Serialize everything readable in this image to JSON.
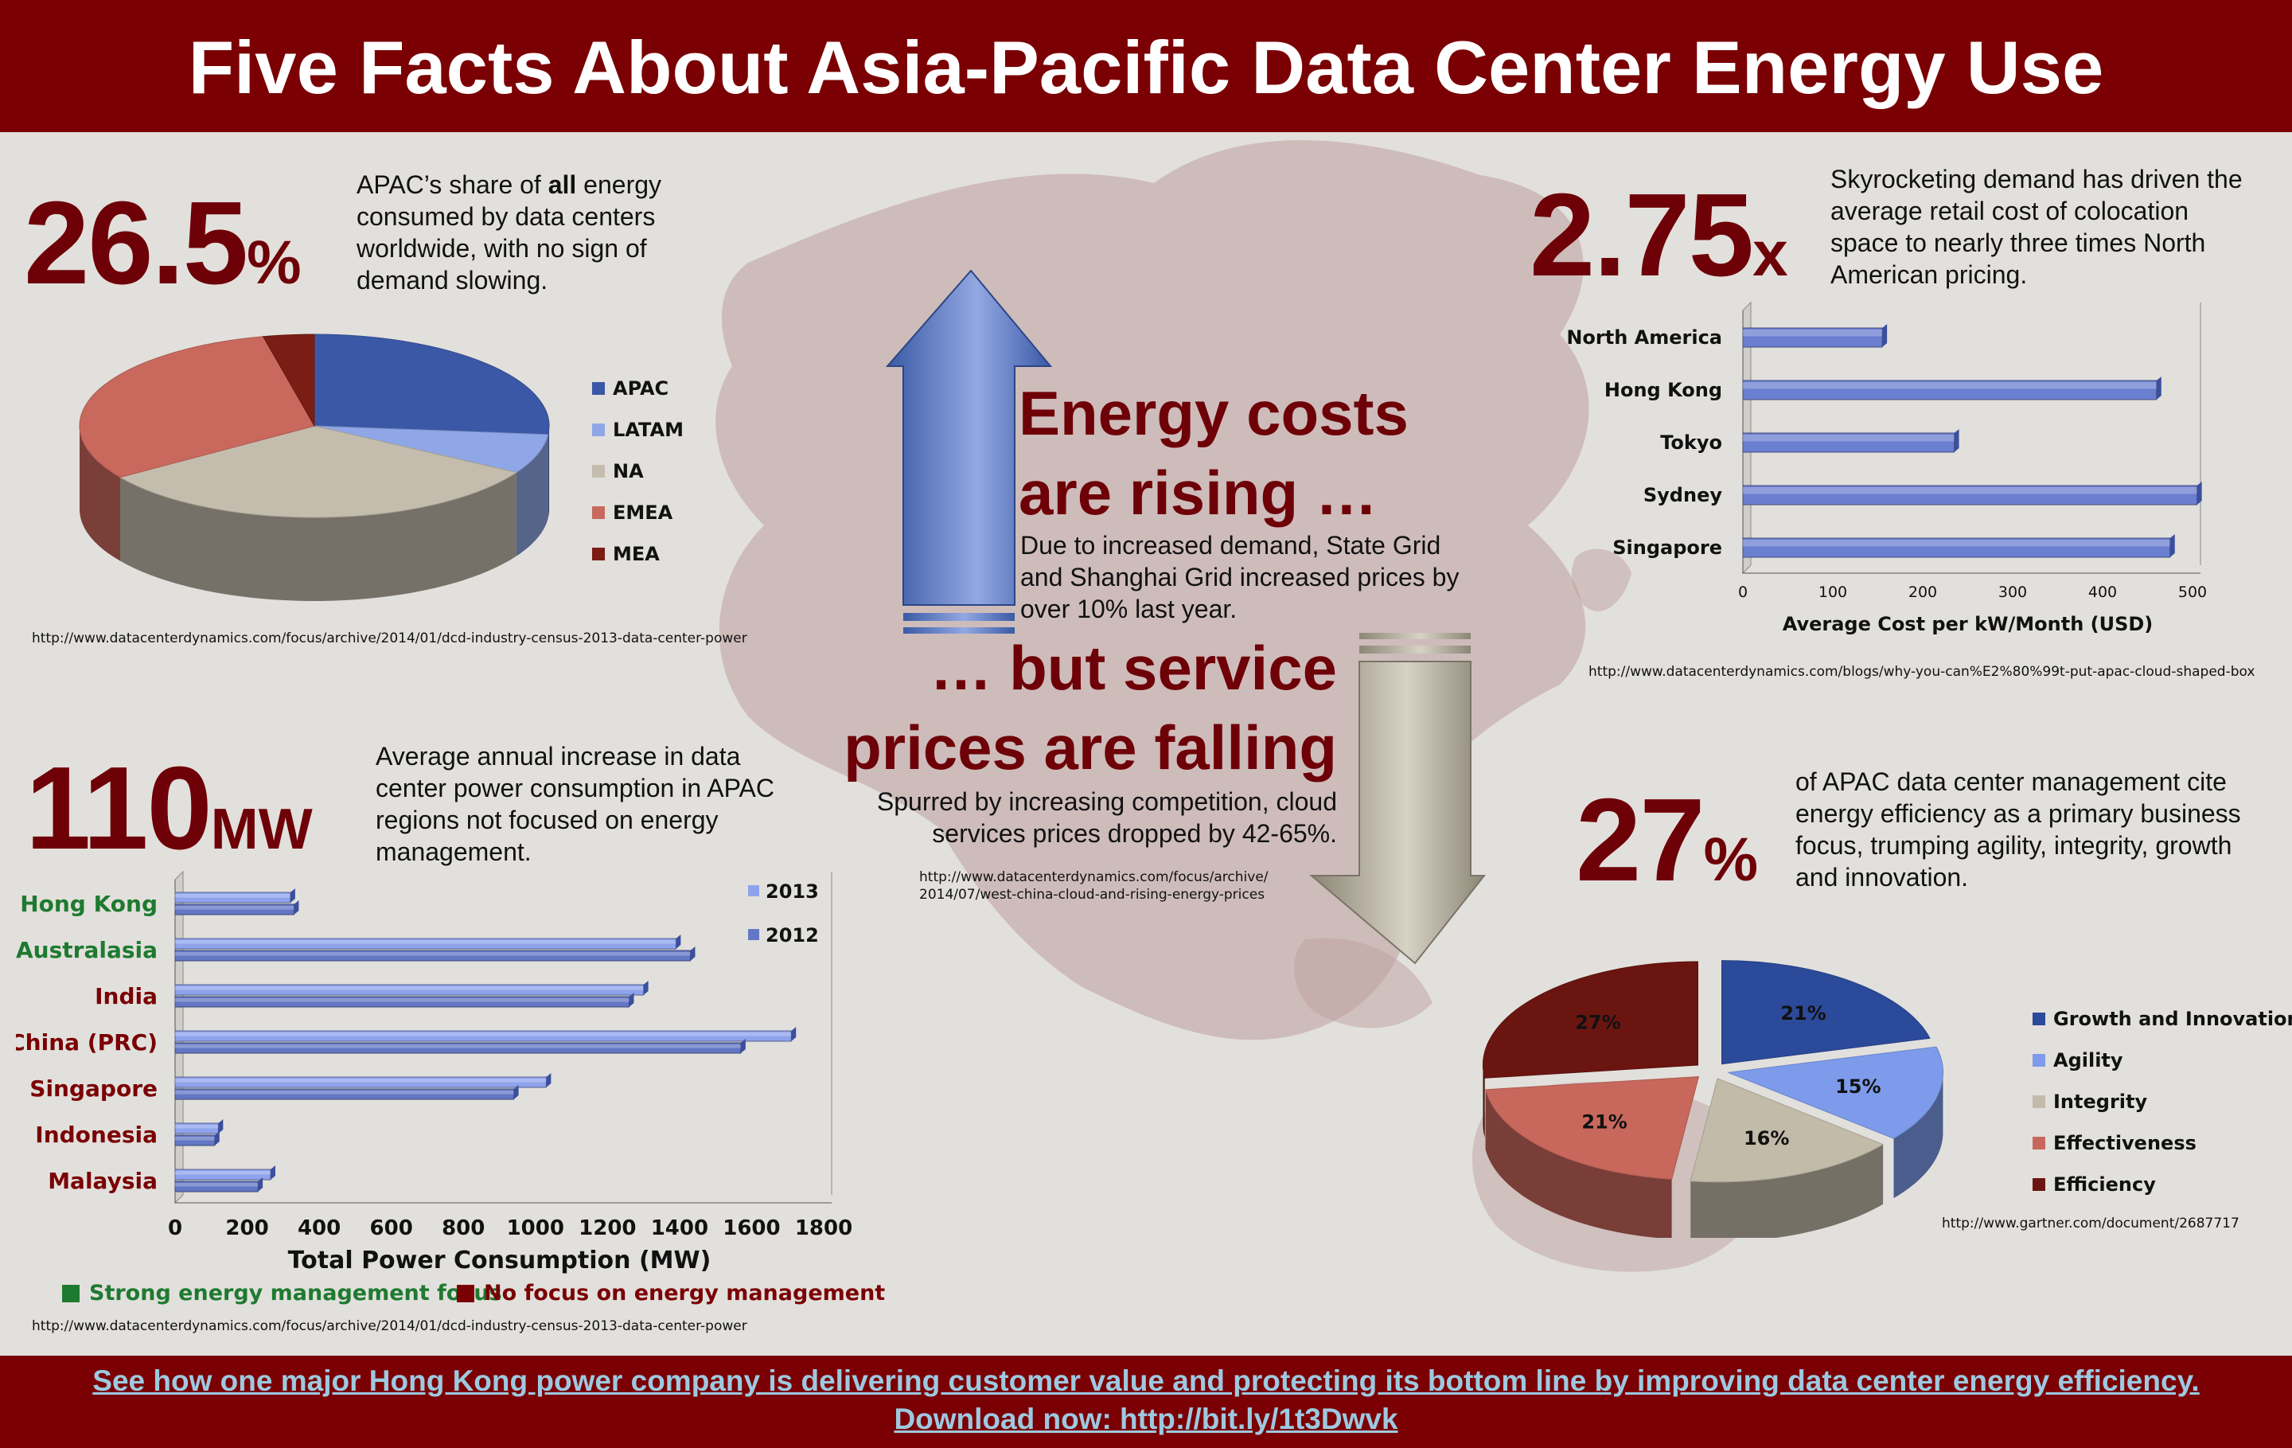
{
  "header": {
    "title": "Five Facts About Asia-Pacific Data Center Energy Use"
  },
  "fact1": {
    "number": "26.5",
    "unit": "%",
    "text_pre": "APAC’s share of ",
    "text_bold": "all",
    "text_post": " energy consumed by data centers worldwide, with no sign of demand slowing.",
    "source": "http://www.datacenterdynamics.com/focus/archive/2014/01/dcd-industry-census-2013-data-center-power"
  },
  "fact2": {
    "number": "2.75",
    "unit": "x",
    "text": "Skyrocketing demand has driven the average retail cost of colocation space to nearly three times North American pricing.",
    "source": "http://www.datacenterdynamics.com/blogs/why-you-can%E2%80%99t-put-apac-cloud-shaped-box"
  },
  "fact3": {
    "number": "110",
    "unit": "MW",
    "text": "Average annual increase in data center power consumption in APAC regions not focused on energy management.",
    "source": "http://www.datacenterdynamics.com/focus/archive/2014/01/dcd-industry-census-2013-data-center-power",
    "legend_strong": "Strong energy management focus",
    "legend_none": "No focus on energy management"
  },
  "fact4": {
    "number": "27",
    "unit": "%",
    "text": "of APAC data center management cite energy efficiency as a primary business focus, trumping agility, integrity, growth and innovation.",
    "source": "http://www.gartner.com/document/2687717"
  },
  "middle": {
    "rising_l1": "Energy costs",
    "rising_l2": "are rising …",
    "rising_text_l1": "Due to increased demand, State Grid",
    "rising_text_l2": "and Shanghai Grid increased prices by",
    "rising_text_l3": "over 10% last year.",
    "falling_l1": "… but service",
    "falling_l2": "prices are falling",
    "falling_text_l1": "Spurred by increasing competition, cloud",
    "falling_text_l2": "services prices dropped by 42-65%.",
    "falling_src_l1": "http://www.datacenterdynamics.com/focus/archive/",
    "falling_src_l2": "2014/07/west-china-cloud-and-rising-energy-prices"
  },
  "footer": {
    "line1": "See how one major Hong Kong power company is delivering customer value and protecting its bottom line by improving data center energy efficiency.",
    "line2": "Download now: http://bit.ly/1t3Dwvk"
  },
  "colors": {
    "brand": "#7a0004",
    "title": "#6e0007",
    "green": "#1e7a30",
    "bar": "#6b7fd0"
  },
  "chart_data": [
    {
      "type": "pie",
      "title": "",
      "categories": [
        "APAC",
        "LATAM",
        "NA",
        "EMEA",
        "MEA"
      ],
      "values": [
        26.5,
        7,
        32,
        31,
        3.5
      ],
      "colors": [
        "#3b58a6",
        "#8fa7e6",
        "#c4bdae",
        "#c9695e",
        "#7a1d14"
      ],
      "legend": "right"
    },
    {
      "type": "bar",
      "orientation": "horizontal",
      "categories": [
        "North America",
        "Hong Kong",
        "Tokyo",
        "Sydney",
        "Singapore"
      ],
      "values": [
        155,
        460,
        235,
        505,
        475
      ],
      "xlabel": "Average Cost per kW/Month  (USD)",
      "ylabel": "",
      "xlim": [
        0,
        500
      ],
      "xticks": [
        0,
        100,
        200,
        300,
        400,
        500
      ]
    },
    {
      "type": "bar",
      "orientation": "horizontal",
      "categories": [
        "Hong Kong",
        "Australasia",
        "India",
        "China (PRC)",
        "Singapore",
        "Indonesia",
        "Malaysia"
      ],
      "category_groups": [
        "strong",
        "strong",
        "none",
        "none",
        "none",
        "none",
        "none"
      ],
      "series": [
        {
          "name": "2013",
          "values": [
            320,
            1390,
            1300,
            1710,
            1030,
            120,
            265
          ]
        },
        {
          "name": "2012",
          "values": [
            330,
            1430,
            1260,
            1570,
            940,
            110,
            230
          ]
        }
      ],
      "xlabel": "Total Power Consumption (MW)",
      "ylabel": "",
      "xlim": [
        0,
        1800
      ],
      "xticks": [
        0,
        200,
        400,
        600,
        800,
        1000,
        1200,
        1400,
        1600,
        1800
      ]
    },
    {
      "type": "pie",
      "title": "",
      "categories": [
        "Growth and Innovation",
        "Agility",
        "Integrity",
        "Effectiveness",
        "Efficiency"
      ],
      "values": [
        21,
        15,
        16,
        21,
        27
      ],
      "labels": [
        "21%",
        "15%",
        "16%",
        "21%",
        "27%"
      ],
      "colors": [
        "#2c4a9a",
        "#7d9bea",
        "#c2bba9",
        "#c8685c",
        "#6b1510"
      ],
      "legend": "right"
    }
  ]
}
